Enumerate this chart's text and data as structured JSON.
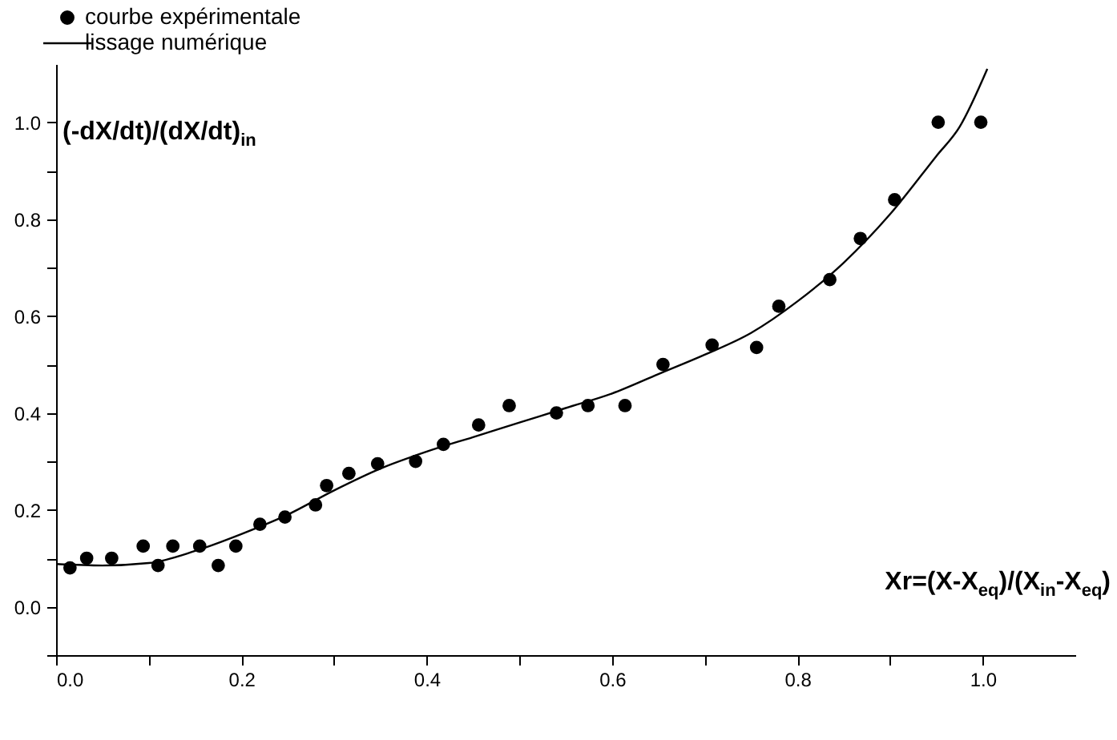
{
  "chart_data": {
    "type": "scatter",
    "xlabel": "Xr=(X-X$_{eq}$)/(X$_{in}$-X$_{eq}$)",
    "ylabel": "(-dX/dt)/(dX/dt)$_{in}$",
    "xlim": [
      0,
      1.1
    ],
    "ylim": [
      -0.1,
      1.12
    ],
    "xticks": [
      {
        "value": 0,
        "label": "0.0"
      },
      {
        "value": 0.1,
        "label": null
      },
      {
        "value": 0.2,
        "label": "0.2"
      },
      {
        "value": 0.3,
        "label": null
      },
      {
        "value": 0.4,
        "label": "0.4"
      },
      {
        "value": 0.5,
        "label": null
      },
      {
        "value": 0.6,
        "label": "0.6"
      },
      {
        "value": 0.7,
        "label": null
      },
      {
        "value": 0.8,
        "label": "0.8"
      },
      {
        "value": 0.9,
        "label": null
      },
      {
        "value": 1,
        "label": "1.0"
      }
    ],
    "yticks": [
      {
        "value": -0.1,
        "label": null
      },
      {
        "value": 0,
        "label": "0.0"
      },
      {
        "value": 0.1,
        "label": null
      },
      {
        "value": 0.2,
        "label": "0.2"
      },
      {
        "value": 0.3,
        "label": null
      },
      {
        "value": 0.4,
        "label": "0.4"
      },
      {
        "value": 0.5,
        "label": null
      },
      {
        "value": 0.6,
        "label": "0.6"
      },
      {
        "value": 0.7,
        "label": null
      },
      {
        "value": 0.8,
        "label": "0.8"
      },
      {
        "value": 0.9,
        "label": null
      },
      {
        "value": 1,
        "label": "1.0"
      }
    ],
    "grid": false,
    "legend": "top",
    "series": [
      {
        "name": "courbe expérimentale",
        "marker": "circle",
        "color": "#000000",
        "x": [
          0.015,
          0.033,
          0.06,
          0.094,
          0.11,
          0.126,
          0.155,
          0.175,
          0.194,
          0.22,
          0.247,
          0.28,
          0.292,
          0.316,
          0.347,
          0.388,
          0.418,
          0.456,
          0.489,
          0.54,
          0.574,
          0.614,
          0.655,
          0.708,
          0.756,
          0.78,
          0.835,
          0.868,
          0.905,
          0.952,
          0.998
        ],
        "values": [
          0.08,
          0.1,
          0.1,
          0.125,
          0.085,
          0.125,
          0.125,
          0.085,
          0.125,
          0.17,
          0.185,
          0.21,
          0.25,
          0.275,
          0.295,
          0.3,
          0.335,
          0.375,
          0.415,
          0.4,
          0.415,
          0.415,
          0.5,
          0.54,
          0.535,
          0.62,
          0.675,
          0.76,
          0.84,
          1.0,
          1.0
        ]
      },
      {
        "name": "lissage numérique",
        "type": "line",
        "marker": "none",
        "color": "#000000",
        "x": [
          0,
          0.05,
          0.1,
          0.15,
          0.2,
          0.25,
          0.3,
          0.35,
          0.4,
          0.45,
          0.5,
          0.55,
          0.6,
          0.65,
          0.7,
          0.75,
          0.8,
          0.85,
          0.9,
          0.95,
          0.975,
          1.005
        ],
        "values": [
          0.088,
          0.085,
          0.09,
          0.115,
          0.15,
          0.19,
          0.24,
          0.285,
          0.32,
          0.35,
          0.38,
          0.41,
          0.44,
          0.48,
          0.52,
          0.565,
          0.63,
          0.71,
          0.81,
          0.93,
          0.99,
          1.11
        ]
      }
    ]
  }
}
